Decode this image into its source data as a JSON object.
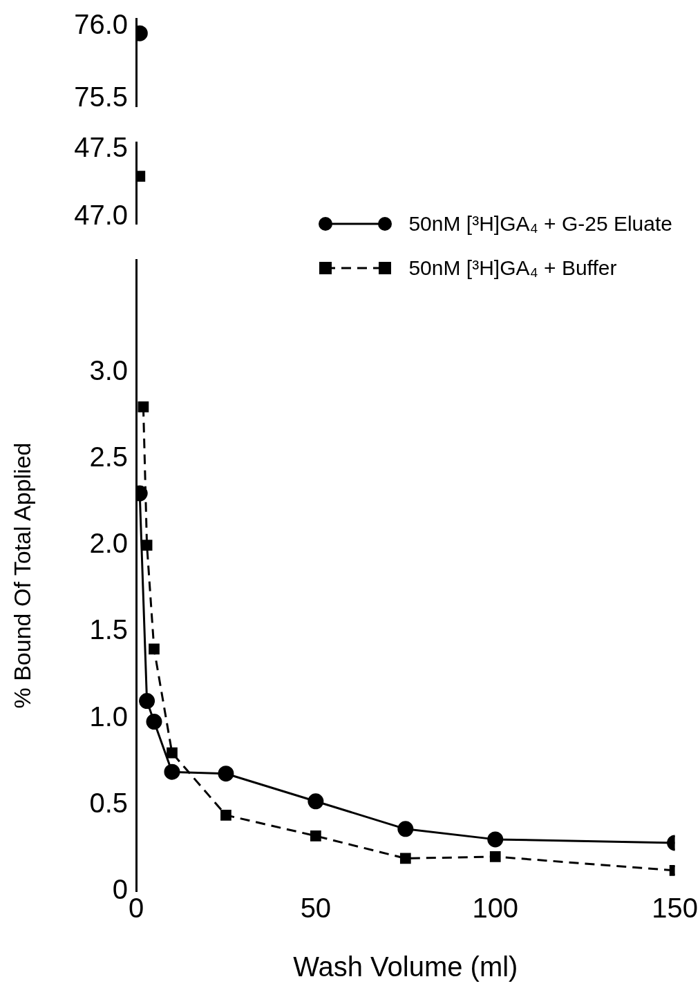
{
  "chart_data": [
    {
      "type": "line",
      "xlim": [
        0,
        150
      ],
      "ylim": [
        75.45,
        76.05
      ],
      "yticks": [
        75.5,
        {
          "value": 76,
          "label": "76.0"
        }
      ],
      "tick_labels": "y",
      "grid": false,
      "legend": false,
      "series": [
        {
          "color": "#000000",
          "marker": "circle",
          "line_style": "solid",
          "x": [
            1
          ],
          "values": [
            75.95
          ]
        }
      ]
    },
    {
      "type": "line",
      "xlim": [
        0,
        150
      ],
      "ylim": [
        46.95,
        47.55
      ],
      "yticks": [
        {
          "value": 47,
          "label": "47.0"
        },
        47.5
      ],
      "tick_labels": "y",
      "grid": false,
      "legend": false,
      "series": [
        {
          "color": "#000000",
          "marker": "square",
          "line_style": "dashed",
          "x": [
            1
          ],
          "values": [
            47.3
          ]
        }
      ]
    },
    {
      "type": "line",
      "xlabel": "Wash Volume (ml)",
      "ylabel": "% Bound Of Total Applied",
      "xlim": [
        0,
        150
      ],
      "xticks": [
        0,
        50,
        100,
        150
      ],
      "ylim": [
        0,
        3.65
      ],
      "yticks": [
        0,
        0.5,
        {
          "value": 1,
          "label": "1.0"
        },
        1.5,
        {
          "value": 2,
          "label": "2.0"
        },
        2.5,
        {
          "value": 3,
          "label": "3.0"
        }
      ],
      "grid": false,
      "legend": "top right",
      "series": [
        {
          "name": "50nM [³H]GA₄ + G-25 Eluate",
          "color": "#000000",
          "marker": "circle",
          "line_style": "solid",
          "x": [
            1,
            3,
            5,
            10,
            25,
            50,
            75,
            100,
            150
          ],
          "values": [
            2.3,
            1.1,
            0.98,
            0.69,
            0.68,
            0.52,
            0.36,
            0.3,
            0.28
          ]
        },
        {
          "name": "50nM [³H]GA₄ + Buffer",
          "color": "#000000",
          "marker": "square",
          "line_style": "dashed",
          "x": [
            2,
            3,
            5,
            10,
            25,
            50,
            75,
            100,
            150
          ],
          "values": [
            2.8,
            2.0,
            1.4,
            0.8,
            0.44,
            0.32,
            0.19,
            0.2,
            0.12
          ]
        }
      ]
    }
  ]
}
